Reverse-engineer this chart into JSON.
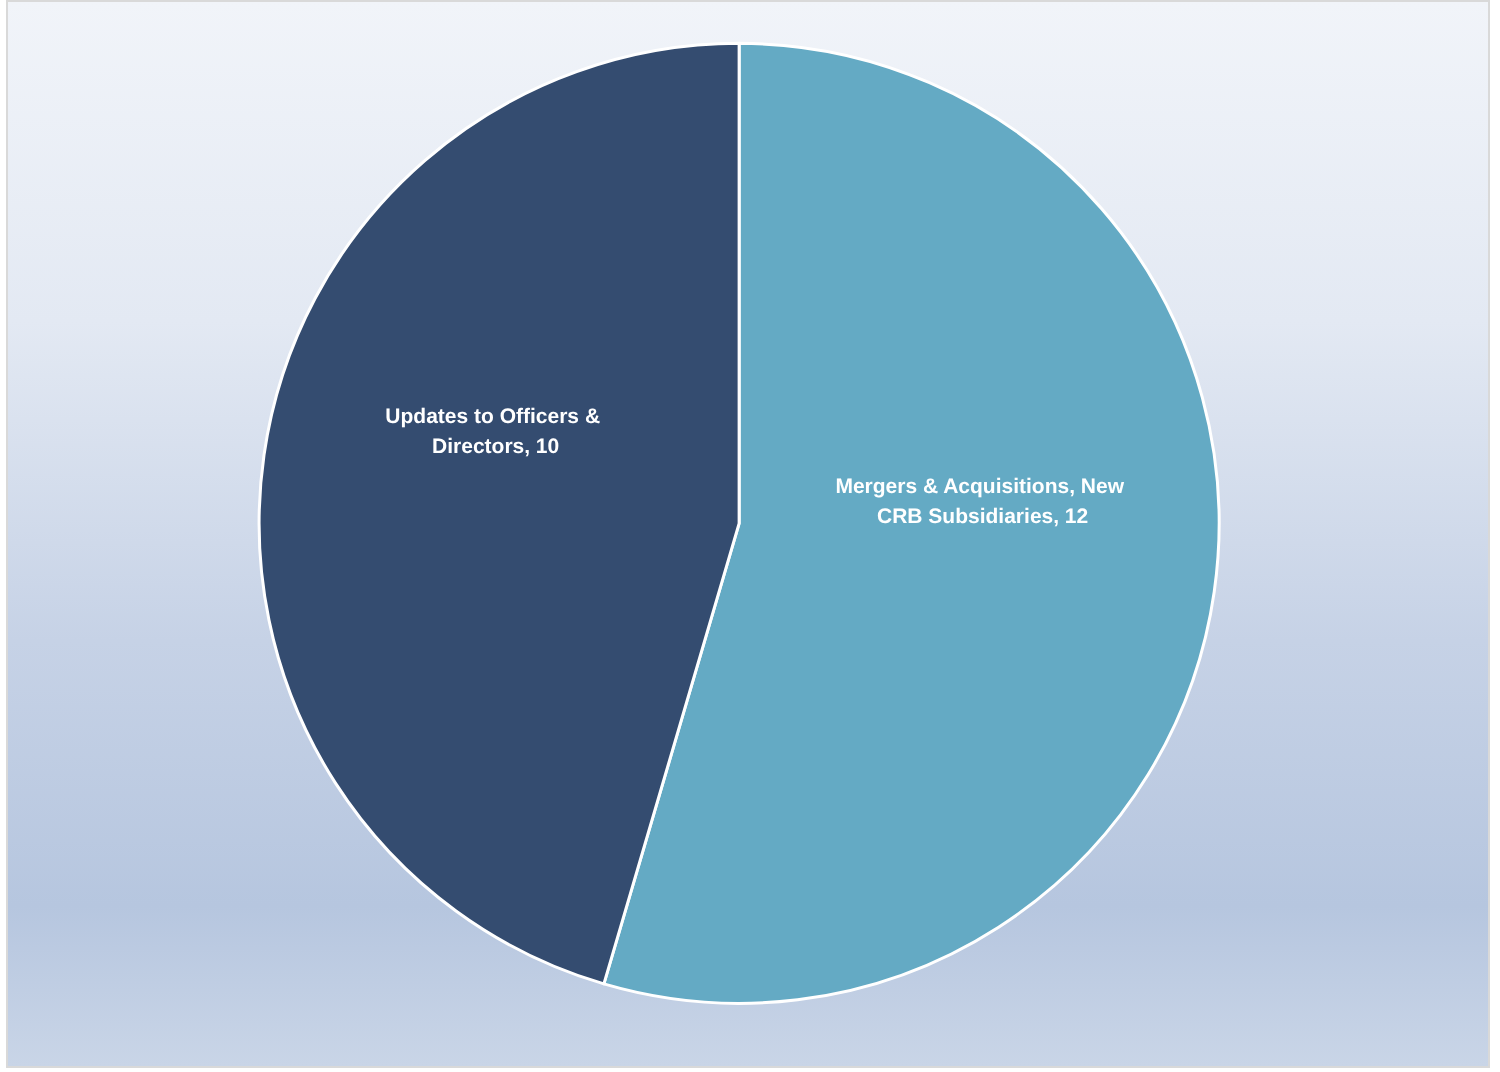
{
  "chart_data": {
    "type": "pie",
    "categories": [
      "Mergers & Acquisitions, New CRB Subsidiaries",
      "Updates to Officers & Directors"
    ],
    "values": [
      12,
      10
    ],
    "value_labels": [
      ", 12",
      ", 10"
    ],
    "colors": [
      "#64aac4",
      "#344c70"
    ]
  }
}
